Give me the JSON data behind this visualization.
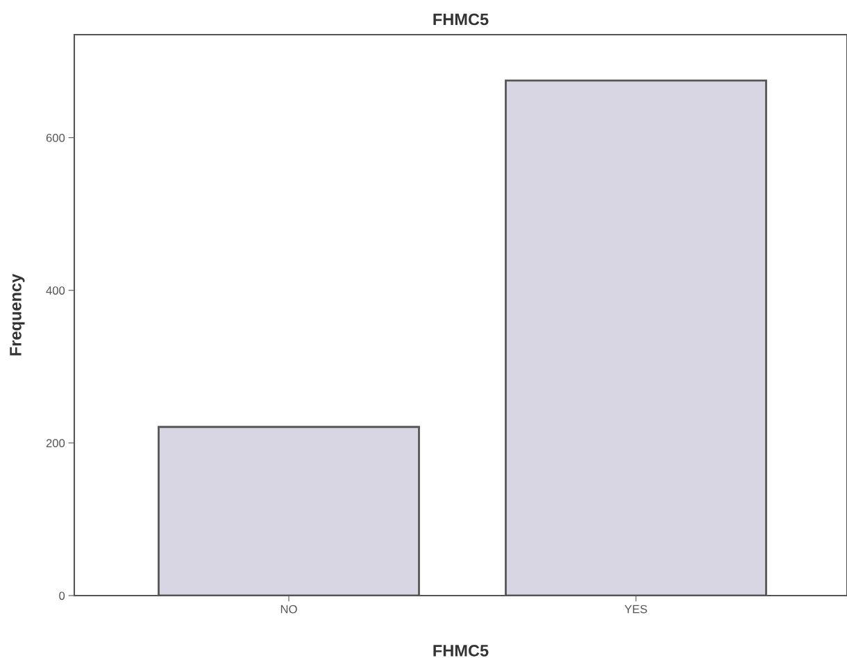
{
  "chart_data": {
    "type": "bar",
    "title": "FHMC5",
    "xlabel": "FHMC5",
    "ylabel": "Frequency",
    "categories": [
      "NO",
      "YES"
    ],
    "values": [
      221,
      675
    ],
    "color": "#d9d6e3",
    "ylim": [
      0,
      735
    ],
    "yticks": [
      0,
      200,
      400,
      600
    ],
    "grid": false
  }
}
